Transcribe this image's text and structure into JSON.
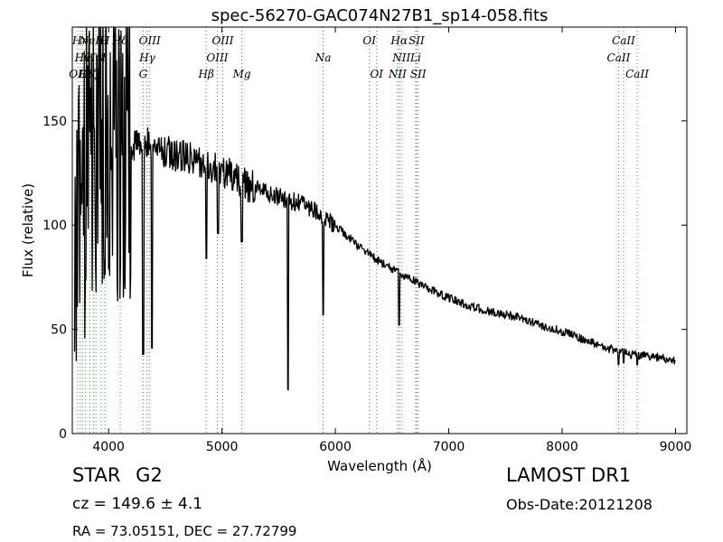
{
  "chart_data": {
    "type": "line",
    "title": "spec-56270-GAC074N27B1_sp14-058.fits",
    "xlabel": "Wavelength (Å)",
    "ylabel": "Flux (relative)",
    "xlim": [
      3680,
      9100
    ],
    "ylim": [
      0,
      195
    ],
    "xticks": [
      4000,
      5000,
      6000,
      7000,
      8000,
      9000
    ],
    "yticks": [
      0,
      50,
      100,
      150
    ],
    "grid": false,
    "series_color": "#000000",
    "line_marker_color": "#2ca02c",
    "spectrum": {
      "x_start": 3700,
      "x_end": 9000,
      "anchors": [
        [
          3700,
          110
        ],
        [
          3900,
          140
        ],
        [
          4100,
          135
        ],
        [
          4300,
          140
        ],
        [
          4500,
          135
        ],
        [
          4700,
          132
        ],
        [
          4900,
          128
        ],
        [
          5000,
          126
        ],
        [
          5200,
          120
        ],
        [
          5400,
          115
        ],
        [
          5600,
          112
        ],
        [
          5800,
          108
        ],
        [
          6000,
          100
        ],
        [
          6200,
          90
        ],
        [
          6400,
          82
        ],
        [
          6600,
          76
        ],
        [
          6800,
          70
        ],
        [
          7000,
          65
        ],
        [
          7200,
          61
        ],
        [
          7400,
          58
        ],
        [
          7600,
          56
        ],
        [
          7800,
          52
        ],
        [
          8000,
          49
        ],
        [
          8200,
          45
        ],
        [
          8400,
          41
        ],
        [
          8600,
          38
        ],
        [
          8800,
          37
        ],
        [
          9000,
          35
        ]
      ],
      "dips": [
        [
          4305,
          38
        ],
        [
          4383,
          41
        ],
        [
          4861,
          84
        ],
        [
          4965,
          96
        ],
        [
          5175,
          92
        ],
        [
          5584,
          21
        ],
        [
          5892,
          57
        ],
        [
          6563,
          52
        ],
        [
          8498,
          33
        ],
        [
          8542,
          34
        ],
        [
          8662,
          33
        ]
      ]
    },
    "line_markers": [
      {
        "wave": 3727,
        "label": "OII",
        "row": 2
      },
      {
        "wave": 3750,
        "label": "Hη",
        "row": 0
      },
      {
        "wave": 3771,
        "label": "Hθ",
        "row": 1
      },
      {
        "wave": 3798,
        "label": "Hι",
        "row": 2
      },
      {
        "wave": 3835,
        "label": "Hζ",
        "row": 2
      },
      {
        "wave": 3869,
        "label": "NeIII",
        "row": 0
      },
      {
        "wave": 3889,
        "label": "HeI",
        "row": 1
      },
      {
        "wave": 3934,
        "label": "K",
        "row": 1
      },
      {
        "wave": 3969,
        "label": "H",
        "row": 0
      },
      {
        "wave": 4102,
        "label": "Hδ",
        "row": 0
      },
      {
        "wave": 4305,
        "label": "G",
        "row": 2
      },
      {
        "wave": 4341,
        "label": "Hγ",
        "row": 1
      },
      {
        "wave": 4363,
        "label": "OIII",
        "row": 0
      },
      {
        "wave": 4861,
        "label": "Hβ",
        "row": 2
      },
      {
        "wave": 4959,
        "label": "OIII",
        "row": 1
      },
      {
        "wave": 5007,
        "label": "OIII",
        "row": 0
      },
      {
        "wave": 5175,
        "label": "Mg",
        "row": 2
      },
      {
        "wave": 5892,
        "label": "Na",
        "row": 1
      },
      {
        "wave": 6300,
        "label": "OI",
        "row": 0
      },
      {
        "wave": 6364,
        "label": "OI",
        "row": 2
      },
      {
        "wave": 6548,
        "label": "NII",
        "row": 2
      },
      {
        "wave": 6563,
        "label": "Hα",
        "row": 0
      },
      {
        "wave": 6583,
        "label": "NII",
        "row": 1
      },
      {
        "wave": 6708,
        "label": "Li",
        "row": 1
      },
      {
        "wave": 6716,
        "label": "SII",
        "row": 0
      },
      {
        "wave": 6731,
        "label": "SII",
        "row": 2
      },
      {
        "wave": 8498,
        "label": "CaII",
        "row": 1
      },
      {
        "wave": 8542,
        "label": "CaII",
        "row": 0
      },
      {
        "wave": 8662,
        "label": "CaII",
        "row": 2
      }
    ]
  },
  "footer": {
    "object_class": "STAR",
    "subclass": "G2",
    "redshift": "cz = 149.6 ± 4.1",
    "coords": "RA = 73.05151, DEC = 27.72799",
    "survey": "LAMOST DR1",
    "obs_date": "Obs-Date:20121208"
  }
}
